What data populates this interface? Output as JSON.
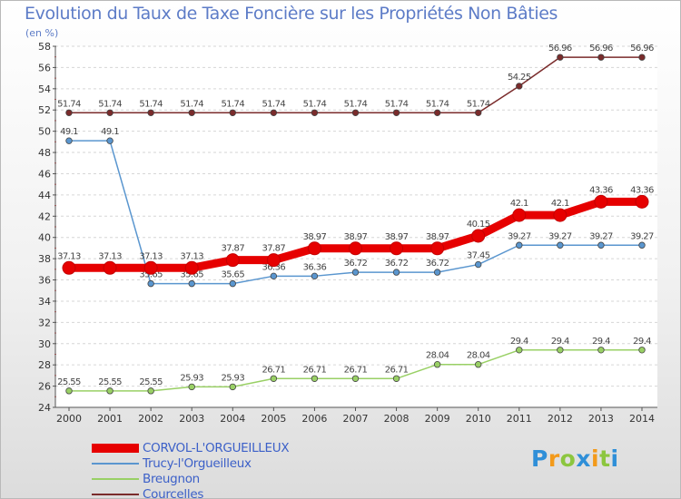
{
  "chart_data": {
    "type": "line",
    "title": "Evolution du Taux de Taxe Foncière sur les Propriétés Non Bâties",
    "subtitle": "(en %)",
    "xlabel": "",
    "ylabel": "(en %)",
    "x": [
      "2000",
      "2001",
      "2002",
      "2003",
      "2004",
      "2005",
      "2006",
      "2007",
      "2008",
      "2009",
      "2010",
      "2011",
      "2012",
      "2013",
      "2014"
    ],
    "yticks": [
      "24",
      "26",
      "28",
      "30",
      "32",
      "34",
      "36",
      "38",
      "40",
      "42",
      "44",
      "46",
      "48",
      "50",
      "52",
      "54",
      "56",
      "58"
    ],
    "ylim": [
      24,
      58
    ],
    "grid": "horizontal dashed",
    "legend_position": "bottom-left",
    "series": [
      {
        "name": "Courcelles",
        "color": "#7a2b2b",
        "values": [
          51.74,
          51.74,
          51.74,
          51.74,
          51.74,
          51.74,
          51.74,
          51.74,
          51.74,
          51.74,
          51.74,
          54.25,
          56.96,
          56.96,
          56.96
        ],
        "labels": [
          "51.74",
          "51.74",
          "51.74",
          "51.74",
          "51.74",
          "51.74",
          "51.74",
          "51.74",
          "51.74",
          "51.74",
          "51.74",
          "54.25",
          "56.96",
          "56.96",
          "56.96"
        ]
      },
      {
        "name": "Trucy-l'Orgueilleux",
        "color": "#5a96cf",
        "values": [
          49.1,
          49.1,
          35.65,
          35.65,
          35.65,
          36.36,
          36.36,
          36.72,
          36.72,
          36.72,
          37.45,
          39.27,
          39.27,
          39.27,
          39.27
        ],
        "labels": [
          "49.1",
          "49.1",
          "35.65",
          "35.65",
          "35.65",
          "36.36",
          "36.36",
          "36.72",
          "36.72",
          "36.72",
          "37.45",
          "39.27",
          "39.27",
          "39.27",
          "39.27"
        ]
      },
      {
        "name": "Breugnon",
        "color": "#99d065",
        "values": [
          25.55,
          25.55,
          25.55,
          25.93,
          25.93,
          26.71,
          26.71,
          26.71,
          26.71,
          28.04,
          28.04,
          29.4,
          29.4,
          29.4,
          29.4
        ],
        "labels": [
          "25.55",
          "25.55",
          "25.55",
          "25.93",
          "25.93",
          "26.71",
          "26.71",
          "26.71",
          "26.71",
          "28.04",
          "28.04",
          "29.4",
          "29.4",
          "29.4",
          "29.4"
        ]
      },
      {
        "name": "CORVOL-L'ORGUEILLEUX",
        "color": "#e60000",
        "values": [
          37.13,
          37.13,
          37.13,
          37.13,
          37.87,
          37.87,
          38.97,
          38.97,
          38.97,
          38.97,
          40.15,
          42.1,
          42.1,
          43.36,
          43.36
        ],
        "labels": [
          "37.13",
          "37.13",
          "37.13",
          "37.13",
          "37.87",
          "37.87",
          "38.97",
          "38.97",
          "38.97",
          "38.97",
          "40.15",
          "42.1",
          "42.1",
          "43.36",
          "43.36"
        ]
      }
    ],
    "legend": [
      "CORVOL-L'ORGUEILLEUX",
      "Trucy-l'Orgueilleux",
      "Breugnon",
      "Courcelles"
    ]
  },
  "legend_items": [
    {
      "label": "CORVOL-L'ORGUEILLEUX",
      "color": "#e60000"
    },
    {
      "label": "Trucy-l'Orgueilleux",
      "color": "#5a96cf"
    },
    {
      "label": "Breugnon",
      "color": "#99d065"
    },
    {
      "label": "Courcelles",
      "color": "#7a2b2b"
    }
  ],
  "logo": {
    "letters": [
      "P",
      "r",
      "o",
      "x",
      "i",
      "t",
      "i"
    ],
    "colors": [
      "#2f8fd8",
      "#f39a1a",
      "#8cc63f",
      "#2f8fd8",
      "#f39a1a",
      "#8cc63f",
      "#2f8fd8"
    ]
  }
}
